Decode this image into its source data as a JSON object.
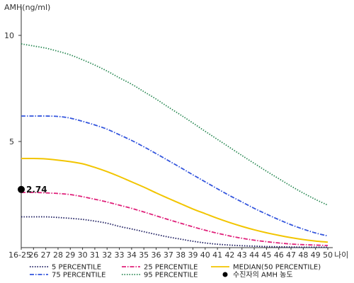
{
  "chart_data": {
    "type": "line",
    "ylabel": "AMH(ng/ml)",
    "xlabel": "나이",
    "categories": [
      "16-25",
      "26",
      "27",
      "28",
      "29",
      "30",
      "31",
      "32",
      "33",
      "34",
      "35",
      "36",
      "37",
      "38",
      "39",
      "40",
      "41",
      "42",
      "43",
      "44",
      "45",
      "46",
      "47",
      "48",
      "49",
      "50"
    ],
    "yticks": [
      5,
      10
    ],
    "ylim": [
      0,
      11
    ],
    "series": [
      {
        "name": "5 PERCENTILE",
        "color": "#1a1a5e",
        "style": "dotted",
        "values": [
          1.45,
          1.45,
          1.45,
          1.42,
          1.38,
          1.33,
          1.25,
          1.15,
          1.0,
          0.88,
          0.75,
          0.62,
          0.5,
          0.4,
          0.3,
          0.22,
          0.16,
          0.12,
          0.09,
          0.07,
          0.05,
          0.04,
          0.03,
          0.02,
          0.02,
          0.02
        ]
      },
      {
        "name": "25 PERCENTILE",
        "color": "#e0207a",
        "style": "dashdot",
        "values": [
          2.6,
          2.6,
          2.58,
          2.55,
          2.5,
          2.4,
          2.28,
          2.15,
          2.0,
          1.85,
          1.68,
          1.5,
          1.32,
          1.15,
          0.98,
          0.82,
          0.68,
          0.55,
          0.44,
          0.35,
          0.28,
          0.22,
          0.17,
          0.14,
          0.12,
          0.1
        ]
      },
      {
        "name": "MEDIAN(50 PERCENTILE)",
        "color": "#f2c500",
        "style": "solid",
        "values": [
          4.2,
          4.2,
          4.18,
          4.12,
          4.05,
          3.95,
          3.78,
          3.58,
          3.35,
          3.1,
          2.85,
          2.58,
          2.32,
          2.07,
          1.82,
          1.6,
          1.38,
          1.18,
          1.0,
          0.84,
          0.7,
          0.58,
          0.47,
          0.38,
          0.31,
          0.26
        ]
      },
      {
        "name": "75 PERCENTILE",
        "color": "#3355dd",
        "style": "dashdot",
        "values": [
          6.2,
          6.2,
          6.2,
          6.18,
          6.1,
          5.95,
          5.78,
          5.58,
          5.32,
          5.05,
          4.75,
          4.43,
          4.1,
          3.77,
          3.43,
          3.1,
          2.77,
          2.45,
          2.15,
          1.85,
          1.58,
          1.32,
          1.08,
          0.87,
          0.69,
          0.55
        ]
      },
      {
        "name": "95 PERCENTILE",
        "color": "#2e8b57",
        "style": "dotted",
        "values": [
          9.6,
          9.5,
          9.4,
          9.25,
          9.08,
          8.85,
          8.6,
          8.32,
          8.0,
          7.7,
          7.35,
          7.0,
          6.62,
          6.25,
          5.87,
          5.48,
          5.1,
          4.72,
          4.34,
          3.97,
          3.6,
          3.25,
          2.9,
          2.57,
          2.27,
          2.0
        ]
      }
    ],
    "marker": {
      "name": "수진자의 AMH 농도",
      "x": "16-25",
      "y": 2.74,
      "label": "2.74",
      "color": "#000000"
    },
    "legend": {
      "position": "bottom",
      "order": [
        "5 PERCENTILE",
        "25 PERCENTILE",
        "MEDIAN(50 PERCENTILE)",
        "75 PERCENTILE",
        "95 PERCENTILE",
        "수진자의 AMH 농도"
      ]
    },
    "grid": false
  }
}
